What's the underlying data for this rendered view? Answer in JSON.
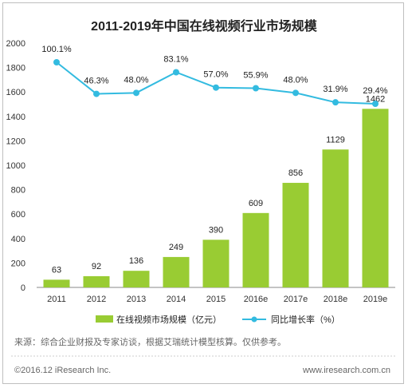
{
  "chart_data": {
    "type": "bar+line",
    "title": "2011-2019年中国在线视频行业市场规模",
    "categories": [
      "2011",
      "2012",
      "2013",
      "2014",
      "2015",
      "2016e",
      "2017e",
      "2018e",
      "2019e"
    ],
    "series": [
      {
        "name": "在线视频市场规模（亿元）",
        "type": "bar",
        "color": "#99cc33",
        "values": [
          63,
          92,
          136,
          249,
          390,
          609,
          856,
          1129,
          1462
        ],
        "labels": [
          "63",
          "92",
          "136",
          "249",
          "390",
          "609",
          "856",
          "1129",
          "1462"
        ]
      },
      {
        "name": "同比增长率（%）",
        "type": "line",
        "color": "#33bbe0",
        "values": [
          100.1,
          46.3,
          48.0,
          83.1,
          57.0,
          55.9,
          48.0,
          31.9,
          29.4
        ],
        "labels": [
          "100.1%",
          "46.3%",
          "48.0%",
          "83.1%",
          "57.0%",
          "55.9%",
          "48.0%",
          "31.9%",
          "29.4%"
        ]
      }
    ],
    "yaxis": {
      "min": 0,
      "max": 2000,
      "ticks": [
        "0",
        "200",
        "400",
        "600",
        "800",
        "1000",
        "1200",
        "1400",
        "1600",
        "1800",
        "2000"
      ]
    },
    "grid": false,
    "legend": "bottom"
  },
  "source": "来源：综合企业财报及专家访谈，根据艾瑞统计模型核算。仅供参考。",
  "copyright": "©2016.12 iResearch Inc.",
  "website": "www.iresearch.com.cn"
}
